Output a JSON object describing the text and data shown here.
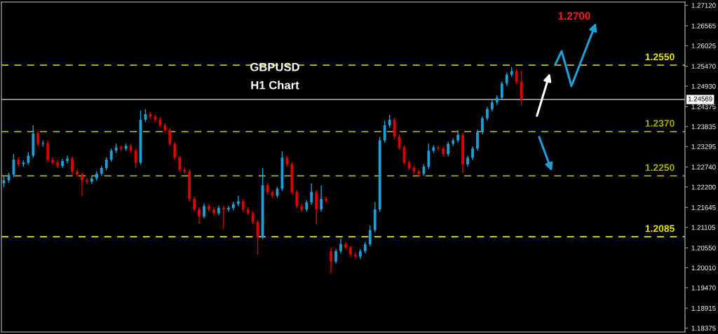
{
  "chart_data": {
    "type": "candlestick",
    "title": "GBPUSD",
    "subtitle": "H1 Chart",
    "annotations": [
      "1.2700"
    ],
    "categories": [
      null,
      null,
      null,
      null,
      null,
      null,
      null,
      null,
      null,
      null,
      null,
      null,
      null,
      null,
      null,
      null,
      null,
      null,
      null,
      null,
      null,
      null,
      null,
      null,
      null,
      null,
      null,
      null,
      null,
      null,
      null,
      null,
      null,
      null,
      null,
      null,
      null,
      null,
      null,
      null,
      null,
      null,
      null,
      null,
      null,
      null,
      null,
      null,
      null,
      null,
      null,
      null,
      null,
      null,
      null,
      null,
      null,
      null,
      null,
      null,
      null,
      null,
      null,
      null,
      null,
      null,
      null,
      null,
      null,
      null,
      null,
      null,
      null,
      null,
      null,
      null,
      null,
      null,
      null,
      null,
      null,
      null,
      null,
      null,
      null,
      null,
      null,
      null,
      null,
      null,
      null,
      null,
      null,
      null,
      null,
      null,
      null,
      null,
      null,
      null,
      null,
      null,
      null,
      null,
      null,
      null,
      null,
      null,
      null,
      null,
      null,
      null,
      null,
      null,
      null,
      null,
      null,
      null,
      null,
      null,
      null,
      null,
      null,
      null,
      null,
      null,
      null,
      null,
      null,
      null,
      null,
      null,
      null,
      null,
      null,
      null,
      null,
      null,
      null,
      null
    ],
    "ohlc": [
      [
        1.223,
        1.2249,
        1.2219,
        1.2238
      ],
      [
        1.2238,
        1.2259,
        1.2232,
        1.2253
      ],
      [
        1.2253,
        1.2309,
        1.2247,
        1.2294
      ],
      [
        1.2294,
        1.23,
        1.2275,
        1.2281
      ],
      [
        1.2281,
        1.2292,
        1.2275,
        1.2286
      ],
      [
        1.2286,
        1.2314,
        1.228,
        1.2305
      ],
      [
        1.2305,
        1.2387,
        1.2299,
        1.2365
      ],
      [
        1.2365,
        1.2371,
        1.2331,
        1.2337
      ],
      [
        1.2337,
        1.2346,
        1.2329,
        1.2339
      ],
      [
        1.2339,
        1.2345,
        1.2288,
        1.2294
      ],
      [
        1.2294,
        1.23,
        1.228,
        1.2286
      ],
      [
        1.2286,
        1.2292,
        1.2271,
        1.2277
      ],
      [
        1.2277,
        1.2296,
        1.2271,
        1.229
      ],
      [
        1.229,
        1.2305,
        1.2284,
        1.2297
      ],
      [
        1.2297,
        1.2303,
        1.2253,
        1.2262
      ],
      [
        1.2262,
        1.2268,
        1.2247,
        1.2253
      ],
      [
        1.2253,
        1.2259,
        1.2196,
        1.2238
      ],
      [
        1.2238,
        1.2244,
        1.2228,
        1.2234
      ],
      [
        1.2234,
        1.2249,
        1.2228,
        1.2243
      ],
      [
        1.2243,
        1.2262,
        1.2237,
        1.2256
      ],
      [
        1.2256,
        1.2277,
        1.225,
        1.2271
      ],
      [
        1.2271,
        1.23,
        1.2265,
        1.2294
      ],
      [
        1.2294,
        1.2324,
        1.2288,
        1.2318
      ],
      [
        1.2318,
        1.2337,
        1.2312,
        1.2327
      ],
      [
        1.2327,
        1.2333,
        1.2318,
        1.2324
      ],
      [
        1.2324,
        1.2337,
        1.2318,
        1.2331
      ],
      [
        1.2331,
        1.2337,
        1.2312,
        1.2318
      ],
      [
        1.2318,
        1.2324,
        1.2271,
        1.2286
      ],
      [
        1.2286,
        1.2427,
        1.228,
        1.2402
      ],
      [
        1.2402,
        1.2431,
        1.2396,
        1.2417
      ],
      [
        1.2417,
        1.2423,
        1.2404,
        1.241
      ],
      [
        1.241,
        1.2416,
        1.2396,
        1.2402
      ],
      [
        1.2402,
        1.2408,
        1.2381,
        1.2387
      ],
      [
        1.2387,
        1.2393,
        1.2368,
        1.2374
      ],
      [
        1.2374,
        1.238,
        1.2331,
        1.2337
      ],
      [
        1.2337,
        1.2343,
        1.2293,
        1.2299
      ],
      [
        1.2299,
        1.2305,
        1.2261,
        1.2267
      ],
      [
        1.2267,
        1.2273,
        1.2256,
        1.2262
      ],
      [
        1.2262,
        1.2268,
        1.2181,
        1.2187
      ],
      [
        1.2187,
        1.2193,
        1.2153,
        1.2159
      ],
      [
        1.2159,
        1.2165,
        1.2121,
        1.214
      ],
      [
        1.214,
        1.2174,
        1.2134,
        1.2168
      ],
      [
        1.2168,
        1.2174,
        1.2153,
        1.2159
      ],
      [
        1.2159,
        1.2165,
        1.2143,
        1.2149
      ],
      [
        1.2149,
        1.2169,
        1.2143,
        1.2163
      ],
      [
        1.2163,
        1.2169,
        1.2108,
        1.2159
      ],
      [
        1.2159,
        1.2169,
        1.2153,
        1.2163
      ],
      [
        1.2163,
        1.218,
        1.2157,
        1.2174
      ],
      [
        1.2174,
        1.2196,
        1.2168,
        1.2181
      ],
      [
        1.2181,
        1.2187,
        1.2153,
        1.2159
      ],
      [
        1.2159,
        1.2165,
        1.2143,
        1.2149
      ],
      [
        1.2149,
        1.2155,
        1.2119,
        1.2125
      ],
      [
        1.2125,
        1.2131,
        1.2037,
        1.2084
      ],
      [
        1.2084,
        1.2271,
        1.2078,
        1.2224
      ],
      [
        1.2224,
        1.223,
        1.22,
        1.2206
      ],
      [
        1.2206,
        1.2212,
        1.219,
        1.2196
      ],
      [
        1.2196,
        1.2221,
        1.219,
        1.2215
      ],
      [
        1.2215,
        1.2316,
        1.2209,
        1.2299
      ],
      [
        1.2299,
        1.2305,
        1.2275,
        1.2281
      ],
      [
        1.2281,
        1.2287,
        1.22,
        1.2206
      ],
      [
        1.2206,
        1.2212,
        1.2162,
        1.2168
      ],
      [
        1.2168,
        1.2174,
        1.2153,
        1.2159
      ],
      [
        1.2159,
        1.2184,
        1.2153,
        1.2178
      ],
      [
        1.2178,
        1.223,
        1.2172,
        1.2206
      ],
      [
        1.2206,
        1.2212,
        1.2118,
        1.2159
      ],
      [
        1.2159,
        1.2224,
        1.2153,
        1.2187
      ],
      [
        1.2187,
        1.2193,
        1.2177,
        1.2183
      ],
      [
        1.2046,
        1.2056,
        1.1986,
        1.2018
      ],
      [
        1.2018,
        1.2052,
        1.2012,
        1.2046
      ],
      [
        1.2046,
        1.208,
        1.204,
        1.2065
      ],
      [
        1.2065,
        1.2071,
        1.205,
        1.2056
      ],
      [
        1.2056,
        1.2062,
        1.2031,
        1.2037
      ],
      [
        1.2037,
        1.2043,
        1.2025,
        1.2031
      ],
      [
        1.2031,
        1.2052,
        1.2025,
        1.2046
      ],
      [
        1.2046,
        1.2071,
        1.204,
        1.2065
      ],
      [
        1.2065,
        1.2116,
        1.2059,
        1.2103
      ],
      [
        1.2103,
        1.2178,
        1.2097,
        1.2159
      ],
      [
        1.2159,
        1.2356,
        1.2153,
        1.2346
      ],
      [
        1.2346,
        1.2399,
        1.234,
        1.2387
      ],
      [
        1.2387,
        1.2416,
        1.2381,
        1.2402
      ],
      [
        1.2402,
        1.2408,
        1.235,
        1.2356
      ],
      [
        1.2356,
        1.2362,
        1.2321,
        1.2327
      ],
      [
        1.2327,
        1.2333,
        1.228,
        1.2286
      ],
      [
        1.2286,
        1.2292,
        1.2265,
        1.2271
      ],
      [
        1.2271,
        1.2277,
        1.2256,
        1.2262
      ],
      [
        1.2262,
        1.2268,
        1.2249,
        1.2256
      ],
      [
        1.2256,
        1.2281,
        1.225,
        1.2275
      ],
      [
        1.2275,
        1.2337,
        1.2269,
        1.2318
      ],
      [
        1.2318,
        1.2333,
        1.2312,
        1.2327
      ],
      [
        1.2327,
        1.2333,
        1.2318,
        1.2324
      ],
      [
        1.2324,
        1.233,
        1.2303,
        1.2309
      ],
      [
        1.2309,
        1.2343,
        1.2303,
        1.2337
      ],
      [
        1.2337,
        1.2352,
        1.2331,
        1.2346
      ],
      [
        1.2346,
        1.2374,
        1.234,
        1.2361
      ],
      [
        1.2361,
        1.2367,
        1.2258,
        1.2281
      ],
      [
        1.2281,
        1.2305,
        1.2275,
        1.2299
      ],
      [
        1.2299,
        1.233,
        1.2293,
        1.2324
      ],
      [
        1.2324,
        1.2375,
        1.2318,
        1.2369
      ],
      [
        1.2369,
        1.2412,
        1.2363,
        1.2406
      ],
      [
        1.2406,
        1.2437,
        1.24,
        1.2431
      ],
      [
        1.2431,
        1.2455,
        1.2425,
        1.2449
      ],
      [
        1.2449,
        1.2468,
        1.2443,
        1.2462
      ],
      [
        1.2462,
        1.2506,
        1.2456,
        1.25
      ],
      [
        1.25,
        1.253,
        1.2494,
        1.2524
      ],
      [
        1.2524,
        1.2545,
        1.2518,
        1.2534
      ],
      [
        1.2534,
        1.254,
        1.2499,
        1.2505
      ],
      [
        1.2505,
        1.2535,
        1.244,
        1.2457
      ],
      null,
      null,
      null,
      null,
      null,
      null,
      null,
      null,
      null,
      null,
      null,
      null,
      null,
      null,
      null,
      null,
      null,
      null,
      null,
      null,
      null,
      null,
      null,
      null,
      null,
      null,
      null,
      null,
      null,
      null,
      null,
      null,
      null
    ],
    "ylim": [
      1.1827,
      1.2721
    ],
    "yticks": [
      {
        "value": 1.2712,
        "label": "1.27120"
      },
      {
        "value": 1.26565,
        "label": "1.26565"
      },
      {
        "value": 1.26025,
        "label": "1.26025"
      },
      {
        "value": 1.2547,
        "label": "1.25470"
      },
      {
        "value": 1.2493,
        "label": "1.24930"
      },
      {
        "value": 1.24375,
        "label": "1.24375"
      },
      {
        "value": 1.23835,
        "label": "1.23835"
      },
      {
        "value": 1.23295,
        "label": "1.23295"
      },
      {
        "value": 1.2274,
        "label": "1.22740"
      },
      {
        "value": 1.222,
        "label": "1.22200"
      },
      {
        "value": 1.21645,
        "label": "1.21645"
      },
      {
        "value": 1.21105,
        "label": "1.21105"
      },
      {
        "value": 1.2055,
        "label": "1.20550"
      },
      {
        "value": 1.2001,
        "label": "1.20010"
      },
      {
        "value": 1.1947,
        "label": "1.19470"
      },
      {
        "value": 1.18915,
        "label": "1.18915"
      },
      {
        "value": 1.18375,
        "label": "1.18375"
      }
    ],
    "tick_labels": "y",
    "ref_lines": [
      {
        "axis": "y",
        "value": 1.255,
        "label": "1.2550",
        "color": "#e6e600",
        "line_style": "dashed"
      },
      {
        "axis": "y",
        "value": 1.237,
        "label": "1.2370",
        "color": "#a8a800",
        "line_style": "dashed"
      },
      {
        "axis": "y",
        "value": 1.225,
        "label": "1.2250",
        "color": "#a8a800",
        "line_style": "dashed"
      },
      {
        "axis": "y",
        "value": 1.2085,
        "label": "1.2085",
        "color": "#e6e600",
        "line_style": "dashed"
      },
      {
        "axis": "y",
        "value": 1.24569,
        "label": "1.24569",
        "color": "#9a9a9a",
        "line_style": "solid"
      }
    ]
  }
}
